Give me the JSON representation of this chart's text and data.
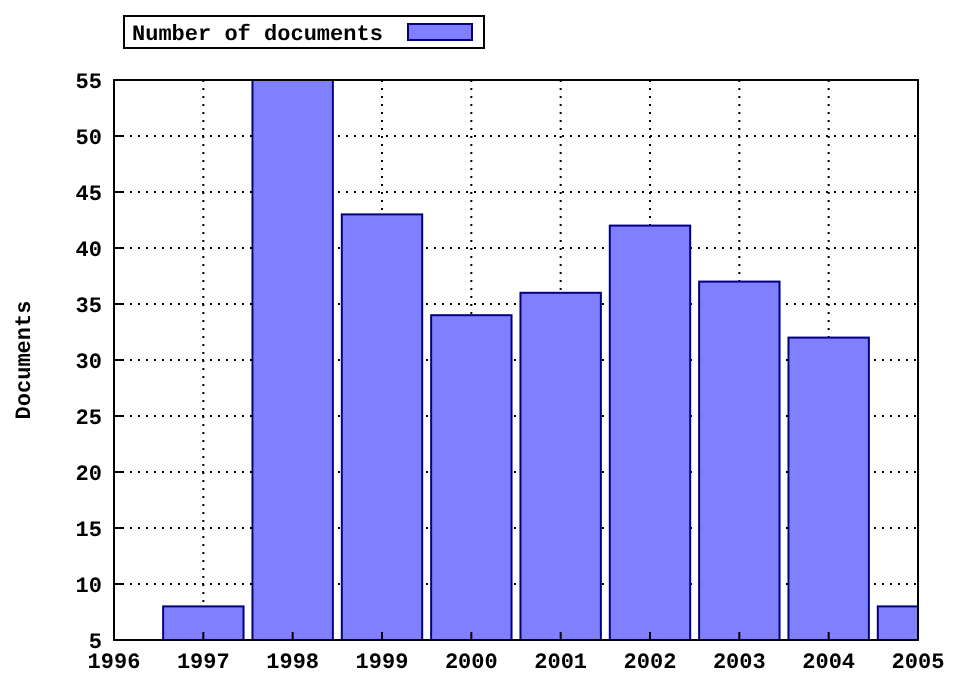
{
  "chart_data": {
    "type": "bar",
    "ylabel": "Documents",
    "x": [
      1997,
      1998,
      1999,
      2000,
      2001,
      2002,
      2003,
      2004,
      2005
    ],
    "series": [
      {
        "name": "Number of documents",
        "color": "#8080ff",
        "values": [
          8,
          55,
          43,
          34,
          36,
          42,
          37,
          32,
          8
        ]
      }
    ],
    "xlim": [
      1996,
      2005
    ],
    "xticks": [
      1996,
      1997,
      1998,
      1999,
      2000,
      2001,
      2002,
      2003,
      2004,
      2005
    ],
    "ylim": [
      5,
      55
    ],
    "yticks": [
      5,
      10,
      15,
      20,
      25,
      30,
      35,
      40,
      45,
      50,
      55
    ],
    "grid": true,
    "legend": "top left"
  }
}
